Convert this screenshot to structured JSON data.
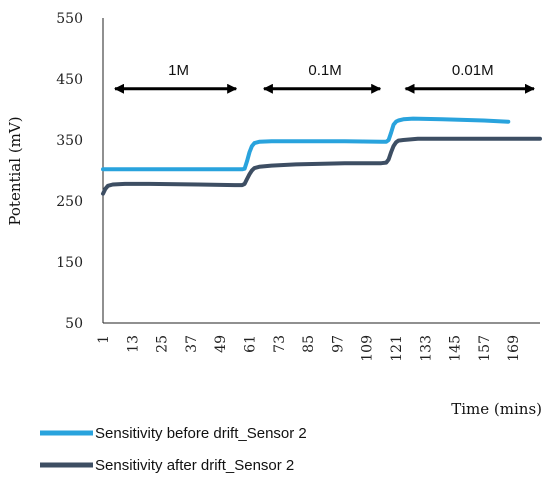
{
  "chart_data": {
    "type": "line",
    "xlabel": "Time (mins)",
    "ylabel": "Potential (mV)",
    "ylim": [
      50,
      550
    ],
    "xlim": [
      1,
      180
    ],
    "y_ticks": [
      "50",
      "150",
      "250",
      "350",
      "450",
      "550"
    ],
    "x_ticks": [
      "1",
      "13",
      "25",
      "37",
      "49",
      "61",
      "73",
      "85",
      "97",
      "109",
      "121",
      "133",
      "145",
      "157",
      "169"
    ],
    "grid": false,
    "legend_position": "bottom-left",
    "series": [
      {
        "name": "Sensitivity before drift_Sensor 2",
        "color": "#29a3dd",
        "x": [
          1,
          20,
          40,
          55,
          58,
          59,
          60,
          61,
          62,
          63,
          65,
          70,
          80,
          100,
          115,
          117,
          118,
          119,
          120,
          121,
          122,
          124,
          128,
          140,
          157,
          167
        ],
        "y": [
          302,
          302,
          302,
          302,
          302,
          303,
          315,
          330,
          340,
          345,
          347,
          348,
          348,
          348,
          347,
          347,
          350,
          362,
          375,
          380,
          382,
          384,
          385,
          384,
          382,
          380
        ]
      },
      {
        "name": "Sensitivity after drift_Sensor 2",
        "color": "#3d4e63",
        "x": [
          1,
          2,
          3,
          5,
          10,
          20,
          40,
          55,
          58,
          59,
          60,
          61,
          62,
          63,
          65,
          70,
          80,
          100,
          115,
          117,
          118,
          119,
          120,
          121,
          122,
          124,
          130,
          145,
          160,
          180
        ],
        "y": [
          262,
          270,
          275,
          277,
          278,
          278,
          277,
          276,
          276,
          278,
          286,
          294,
          300,
          304,
          306,
          308,
          310,
          312,
          312,
          313,
          318,
          330,
          340,
          346,
          349,
          350,
          352,
          352,
          352,
          352
        ]
      }
    ],
    "annotations": [
      {
        "label": "1M",
        "x_start": 1,
        "x_end": 58,
        "y": 434
      },
      {
        "label": "0.1M",
        "x_start": 62,
        "x_end": 117,
        "y": 434
      },
      {
        "label": "0.01M",
        "x_start": 120,
        "x_end": 180,
        "y": 434
      }
    ]
  }
}
